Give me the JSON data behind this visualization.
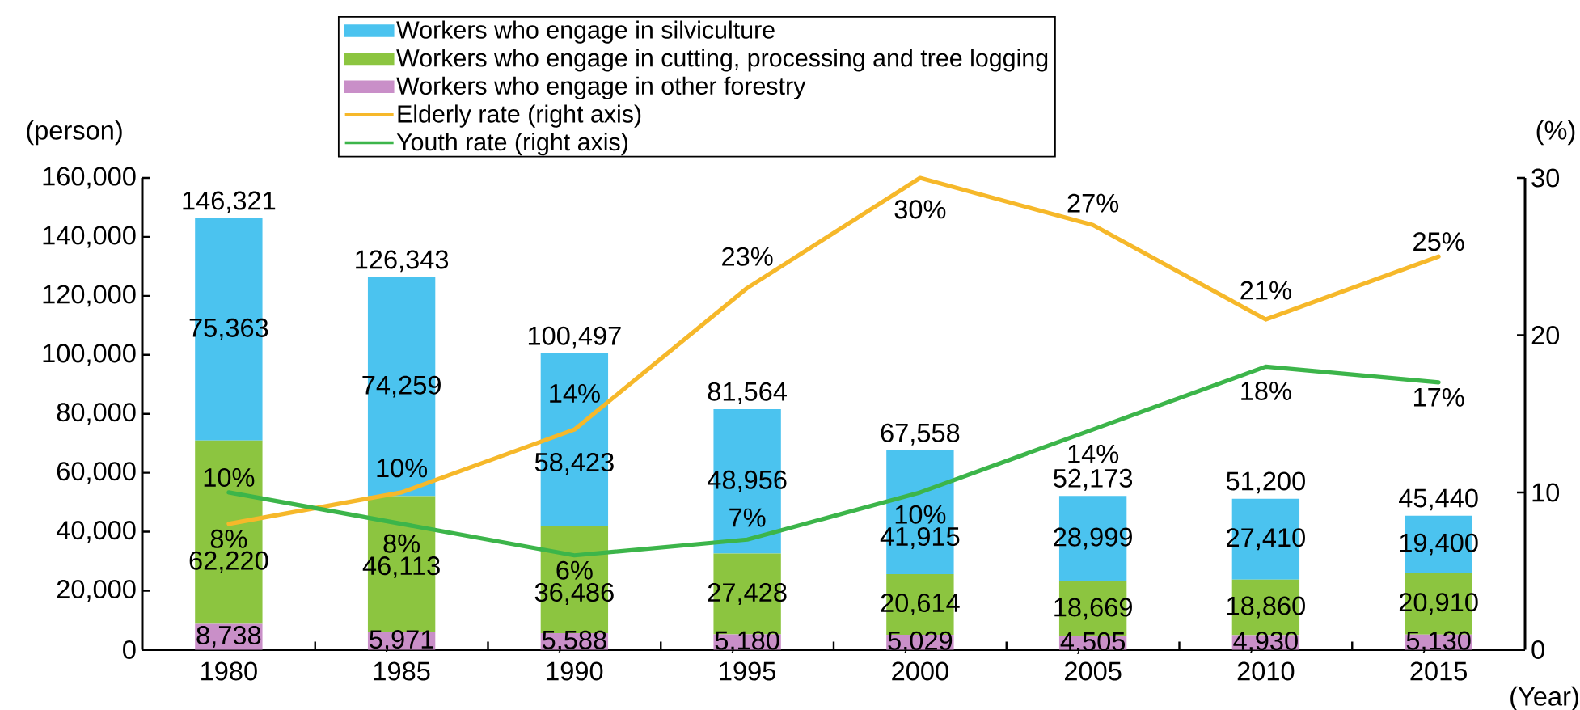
{
  "chart_data": {
    "type": "bar",
    "stacked": true,
    "xlabel": "(Year)",
    "ylabel": "(person)",
    "y2label": "(%)",
    "categories": [
      "1980",
      "1985",
      "1990",
      "1995",
      "2000",
      "2005",
      "2010",
      "2015"
    ],
    "series": [
      {
        "name": "Workers who engage in other forestry",
        "color": "#c98fc8",
        "values": [
          8738,
          5971,
          5588,
          5180,
          5029,
          4505,
          4930,
          5130
        ],
        "value_labels": [
          "8,738",
          "5,971",
          "5,588",
          "5,180",
          "5,029",
          "4,505",
          "4,930",
          "5,130"
        ]
      },
      {
        "name": "Workers who engage in cutting, processing and tree logging",
        "color": "#8cc540",
        "values": [
          62220,
          46113,
          36486,
          27428,
          20614,
          18669,
          18860,
          20910
        ],
        "value_labels": [
          "62,220",
          "46,113",
          "36,486",
          "27,428",
          "20,614",
          "18,669",
          "18,860",
          "20,910"
        ]
      },
      {
        "name": "Workers who engage in silviculture",
        "color": "#4bc3ef",
        "values": [
          75363,
          74259,
          58423,
          48956,
          41915,
          28999,
          27410,
          19400
        ],
        "value_labels": [
          "75,363",
          "74,259",
          "58,423",
          "48,956",
          "41,915",
          "28,999",
          "27,410",
          "19,400"
        ]
      },
      {
        "name": "Elderly rate (right axis)",
        "type": "line",
        "axis": "y2",
        "color": "#f6b82a",
        "values": [
          8,
          10,
          14,
          23,
          30,
          27,
          21,
          25
        ],
        "value_labels": [
          "8%",
          "10%",
          "14%",
          "23%",
          "30%",
          "27%",
          "21%",
          "25%"
        ]
      },
      {
        "name": "Youth rate (right axis)",
        "type": "line",
        "axis": "y2",
        "color": "#3cb54a",
        "values": [
          10,
          8,
          6,
          7,
          10,
          14,
          18,
          17
        ],
        "value_labels": [
          "10%",
          "8%",
          "6%",
          "7%",
          "10%",
          "14%",
          "18%",
          "17%"
        ]
      }
    ],
    "totals": [
      "146,321",
      "126,343",
      "100,497",
      "81,564",
      "67,558",
      "52,173",
      "51,200",
      "45,440"
    ],
    "ylim": [
      0,
      160000
    ],
    "yticks": [
      0,
      {
        "value": 20000,
        "label": "20,000"
      },
      {
        "value": 40000,
        "label": "40,000"
      },
      {
        "value": 60000,
        "label": "60,000"
      },
      {
        "value": 80000,
        "label": "80,000"
      },
      {
        "value": 100000,
        "label": "100,000"
      },
      {
        "value": 120000,
        "label": "120,000"
      },
      {
        "value": 140000,
        "label": "140,000"
      },
      {
        "value": 160000,
        "label": "160,000"
      }
    ],
    "y2lim": [
      0,
      30
    ],
    "y2ticks": [
      0,
      10,
      20,
      30
    ],
    "legend": "top",
    "line_style": "solid"
  }
}
